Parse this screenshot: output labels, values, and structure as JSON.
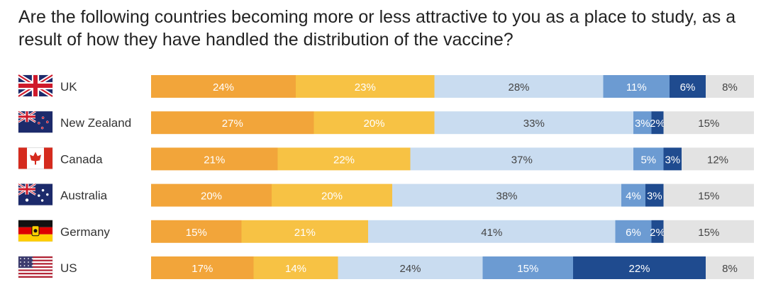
{
  "chart_data": {
    "type": "bar",
    "orientation": "horizontal",
    "stacked": true,
    "title": "Are the following countries becoming more or less attractive to you as a place to study, as a result of how they have handled the distribution of the vaccine?",
    "categories": [
      "UK",
      "New Zealand",
      "Canada",
      "Australia",
      "Germany",
      "US"
    ],
    "series": [
      {
        "values": [
          24,
          27,
          21,
          20,
          15,
          17
        ],
        "color": "#f2a53a",
        "label_color": "#ffffff"
      },
      {
        "values": [
          23,
          20,
          22,
          20,
          21,
          14
        ],
        "color": "#f7c244",
        "label_color": "#ffffff"
      },
      {
        "values": [
          28,
          33,
          37,
          38,
          41,
          24
        ],
        "color": "#c9dcf0",
        "label_color": "#444444"
      },
      {
        "values": [
          11,
          3,
          5,
          4,
          6,
          15
        ],
        "color": "#6c9bd2",
        "label_color": "#ffffff"
      },
      {
        "values": [
          6,
          2,
          3,
          3,
          2,
          22
        ],
        "color": "#1f4b8f",
        "label_color": "#ffffff"
      },
      {
        "values": [
          8,
          15,
          12,
          15,
          15,
          8
        ],
        "color": "#e3e3e3",
        "label_color": "#444444"
      }
    ],
    "xlim": [
      0,
      100
    ],
    "legend": false,
    "grid": false,
    "flag_icons": [
      "uk-flag-icon",
      "new-zealand-flag-icon",
      "canada-flag-icon",
      "australia-flag-icon",
      "germany-flag-icon",
      "us-flag-icon"
    ]
  }
}
